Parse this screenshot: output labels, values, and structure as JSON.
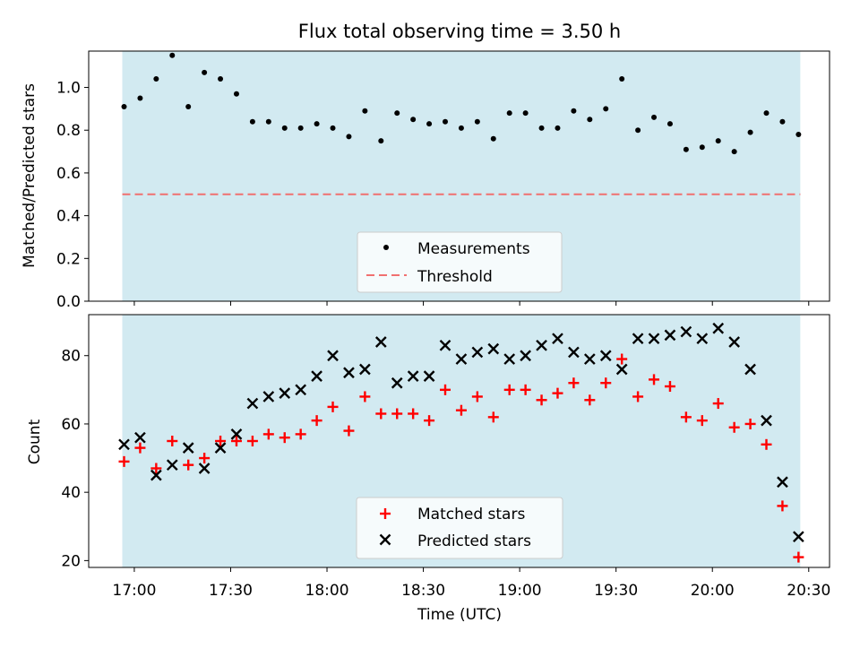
{
  "chart_data": [
    {
      "type": "scatter",
      "title": "Flux total observing time = 3.50 h",
      "ylabel": "Matched/Predicted stars",
      "xlabel": "",
      "ylim": [
        0,
        1.17
      ],
      "yticks": [
        0.0,
        0.2,
        0.4,
        0.6,
        0.8,
        1.0
      ],
      "ytick_labels": [
        "0.0",
        "0.2",
        "0.4",
        "0.6",
        "0.8",
        "1.0"
      ],
      "x": [
        "16:55",
        "17:00",
        "17:05",
        "17:10",
        "17:15",
        "17:20",
        "17:25",
        "17:30",
        "17:35",
        "17:40",
        "17:45",
        "17:50",
        "17:55",
        "18:00",
        "18:05",
        "18:10",
        "18:15",
        "18:20",
        "18:25",
        "18:30",
        "18:35",
        "18:40",
        "18:45",
        "18:50",
        "18:55",
        "19:00",
        "19:05",
        "19:10",
        "19:15",
        "19:20",
        "19:25",
        "19:30",
        "19:35",
        "19:40",
        "19:45",
        "19:50",
        "19:55",
        "20:00",
        "20:05",
        "20:10",
        "20:15",
        "20:20",
        "20:25"
      ],
      "series": [
        {
          "name": "Measurements",
          "marker": "dot",
          "color": "#000000",
          "values": [
            0.91,
            0.95,
            1.04,
            1.15,
            0.91,
            1.07,
            1.04,
            0.97,
            0.84,
            0.84,
            0.81,
            0.81,
            0.83,
            0.81,
            0.77,
            0.89,
            0.75,
            0.88,
            0.85,
            0.83,
            0.84,
            0.81,
            0.84,
            0.76,
            0.88,
            0.88,
            0.81,
            0.81,
            0.89,
            0.85,
            0.9,
            1.04,
            0.8,
            0.86,
            0.83,
            0.71,
            0.72,
            0.75,
            0.7,
            0.79,
            0.88,
            0.84,
            0.78
          ]
        }
      ],
      "threshold": {
        "name": "Threshold",
        "value": 0.5,
        "color": "#f07070",
        "style": "dashed"
      },
      "shaded_band": {
        "from": "16:55",
        "to": "20:25",
        "color": "#add8e6"
      },
      "legend": "lower center",
      "grid": false
    },
    {
      "type": "scatter",
      "title": "",
      "xlabel": "Time (UTC)",
      "ylabel": "Count",
      "ylim": [
        18,
        92
      ],
      "yticks": [
        20,
        40,
        60,
        80
      ],
      "ytick_labels": [
        "20",
        "40",
        "60",
        "80"
      ],
      "xticks": [
        "17:00",
        "17:30",
        "18:00",
        "18:30",
        "19:00",
        "19:30",
        "20:00",
        "20:30"
      ],
      "x": [
        "16:55",
        "17:00",
        "17:05",
        "17:10",
        "17:15",
        "17:20",
        "17:25",
        "17:30",
        "17:35",
        "17:40",
        "17:45",
        "17:50",
        "17:55",
        "18:00",
        "18:05",
        "18:10",
        "18:15",
        "18:20",
        "18:25",
        "18:30",
        "18:35",
        "18:40",
        "18:45",
        "18:50",
        "18:55",
        "19:00",
        "19:05",
        "19:10",
        "19:15",
        "19:20",
        "19:25",
        "19:30",
        "19:35",
        "19:40",
        "19:45",
        "19:50",
        "19:55",
        "20:00",
        "20:05",
        "20:10",
        "20:15",
        "20:20",
        "20:25"
      ],
      "series": [
        {
          "name": "Matched stars",
          "marker": "plus",
          "color": "#ff0000",
          "values": [
            49,
            53,
            47,
            55,
            48,
            50,
            55,
            55,
            55,
            57,
            56,
            57,
            61,
            65,
            58,
            68,
            63,
            63,
            63,
            61,
            70,
            64,
            68,
            62,
            70,
            70,
            67,
            69,
            72,
            67,
            72,
            79,
            68,
            73,
            71,
            62,
            61,
            66,
            59,
            60,
            54,
            36,
            21
          ]
        },
        {
          "name": "Predicted stars",
          "marker": "x",
          "color": "#000000",
          "values": [
            54,
            56,
            45,
            48,
            53,
            47,
            53,
            57,
            66,
            68,
            69,
            70,
            74,
            80,
            75,
            76,
            84,
            72,
            74,
            74,
            83,
            79,
            81,
            82,
            79,
            80,
            83,
            85,
            81,
            79,
            80,
            76,
            85,
            85,
            86,
            87,
            85,
            88,
            84,
            76,
            61,
            43,
            27
          ]
        }
      ],
      "shaded_band": {
        "from": "16:55",
        "to": "20:25",
        "color": "#add8e6"
      },
      "legend": "lower center",
      "grid": false
    }
  ]
}
